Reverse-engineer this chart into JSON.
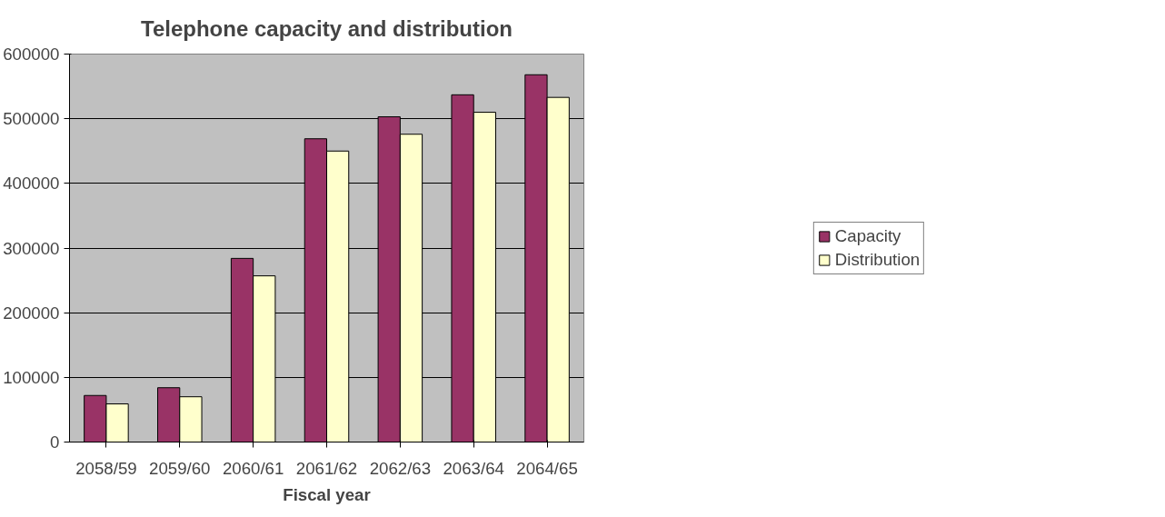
{
  "chart_data": {
    "type": "bar",
    "title": "Telephone capacity and distribution",
    "xlabel": "Fiscal year",
    "categories": [
      "2058/59",
      "2059/60",
      "2060/61",
      "2061/62",
      "2062/63",
      "2063/64",
      "2064/65"
    ],
    "series": [
      {
        "name": "Capacity",
        "color": "#993366",
        "values": [
          72000,
          84000,
          284000,
          469000,
          503000,
          537000,
          568000
        ]
      },
      {
        "name": "Distribution",
        "color": "#ffffcc",
        "values": [
          59000,
          70000,
          257000,
          450000,
          476000,
          510000,
          533000
        ]
      }
    ],
    "ylim": [
      0,
      600000
    ],
    "yticks": [
      0,
      100000,
      200000,
      300000,
      400000,
      500000,
      600000
    ],
    "grid": "y",
    "legend": "right"
  }
}
